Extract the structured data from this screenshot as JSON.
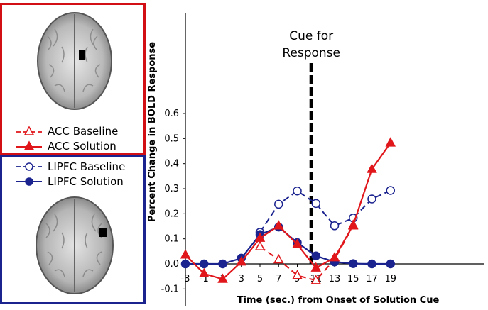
{
  "legend": {
    "acc_baseline": "ACC Baseline",
    "acc_solution": "ACC Solution",
    "lipfc_baseline": "LIPFC Baseline",
    "lipfc_solution": "LIPFC Solution"
  },
  "colors": {
    "red": "#e0161b",
    "blue": "#1b238f",
    "panel_red": "#d10f14",
    "panel_blue": "#1b238f"
  },
  "chart_data": {
    "type": "line",
    "xlabel": "Time (sec.) from Onset of Solution Cue",
    "ylabel": "Percent Change in BOLD Response",
    "x": [
      -3,
      -1,
      1,
      3,
      5,
      7,
      9,
      11,
      13,
      15,
      17,
      19
    ],
    "x_ticks": [
      "-3",
      "-1",
      "1",
      "3",
      "5",
      "7",
      "9",
      "11",
      "13",
      "15",
      "17",
      "19"
    ],
    "ylim": [
      -0.1,
      0.6
    ],
    "y_ticks": [
      "-0.1",
      "0.0",
      "0.1",
      "0.2",
      "0.3",
      "0.4",
      "0.5",
      "0.6"
    ],
    "annotation": {
      "line1": "Cue for",
      "line2": "Response",
      "x": 10.5
    },
    "series": [
      {
        "name": "ACC Baseline",
        "color": "red",
        "dashed": true,
        "marker": "triangle-open",
        "x": [
          5,
          7,
          9,
          11,
          13,
          15
        ],
        "values": [
          0.069,
          0.017,
          -0.046,
          -0.066,
          0.018,
          0.152
        ]
      },
      {
        "name": "ACC Solution",
        "color": "red",
        "dashed": false,
        "marker": "triangle-filled",
        "x": [
          -3,
          -1,
          1,
          3,
          5,
          7,
          9,
          11,
          13,
          15,
          17,
          19
        ],
        "values": [
          0.036,
          -0.039,
          -0.061,
          0.008,
          0.103,
          0.152,
          0.078,
          -0.016,
          0.025,
          0.155,
          0.378,
          0.483
        ]
      },
      {
        "name": "LIPFC Baseline",
        "color": "blue",
        "dashed": true,
        "marker": "circle-open",
        "x": [
          5,
          7,
          9,
          11,
          13,
          15,
          17,
          19
        ],
        "values": [
          0.126,
          0.238,
          0.291,
          0.241,
          0.152,
          0.183,
          0.259,
          0.293
        ]
      },
      {
        "name": "LIPFC Solution",
        "color": "blue",
        "dashed": false,
        "marker": "circle-filled",
        "x": [
          -3,
          -1,
          1,
          3,
          5,
          7,
          9,
          11,
          13,
          15,
          17,
          19
        ],
        "values": [
          0.0,
          0.0,
          0.0,
          0.023,
          0.117,
          0.147,
          0.085,
          0.032,
          0.008,
          0.001,
          0.0,
          0.0
        ]
      }
    ]
  }
}
